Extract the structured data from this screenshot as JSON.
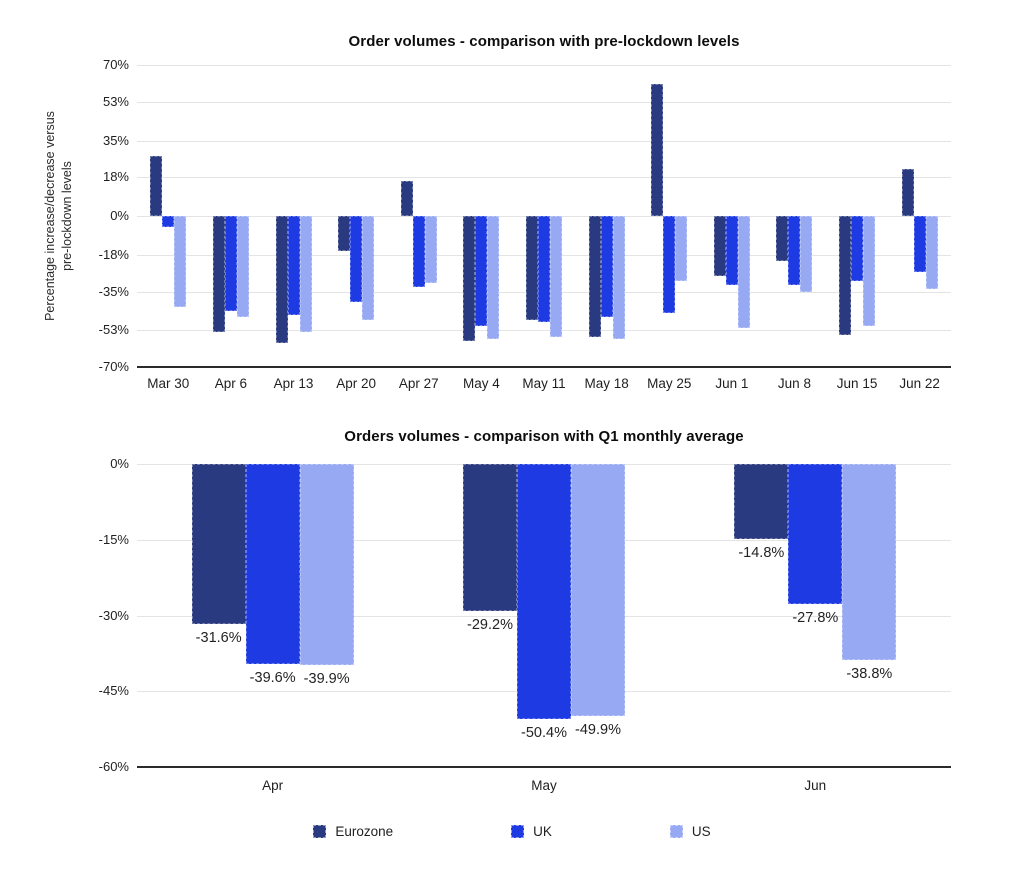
{
  "colors": {
    "eurozone": "#2a3a80",
    "uk": "#1e3ae3",
    "us": "#97a9f2",
    "gridline": "#e4e4e4",
    "axis": "#2b2b2b",
    "text": "#1f1f1f"
  },
  "legend": {
    "items": [
      {
        "label": "Eurozone",
        "color": "#2a3a80"
      },
      {
        "label": "UK",
        "color": "#1e3ae3"
      },
      {
        "label": "US",
        "color": "#97a9f2"
      }
    ]
  },
  "chart_data": [
    {
      "type": "bar",
      "title": "Order volumes - comparison with pre-lockdown levels",
      "ylabel": "Percentage increase/decrease versus pre-lockdown levels",
      "ylabel_lines": [
        "Percentage increase/decrease versus",
        "pre-lockdown levels"
      ],
      "categories": [
        "Mar 30",
        "Apr 6",
        "Apr 13",
        "Apr 20",
        "Apr 27",
        "May 4",
        "May 11",
        "May 18",
        "May 25",
        "Jun 1",
        "Jun 8",
        "Jun 15",
        "Jun 22"
      ],
      "series": [
        {
          "name": "Eurozone",
          "color": "#2a3a80",
          "values": [
            28,
            -54,
            -59,
            -16,
            16,
            -58,
            -48,
            -56,
            61,
            -28,
            -21,
            -55,
            22
          ]
        },
        {
          "name": "UK",
          "color": "#1e3ae3",
          "values": [
            -5,
            -44,
            -46,
            -40,
            -33,
            -51,
            -49,
            -47,
            -45,
            -32,
            -32,
            -30,
            -26
          ]
        },
        {
          "name": "US",
          "color": "#97a9f2",
          "values": [
            -42,
            -47,
            -54,
            -48,
            -31,
            -57,
            -56,
            -57,
            -30,
            -52,
            -35,
            -51,
            -34
          ]
        }
      ],
      "ylim": [
        -70,
        70
      ],
      "yticks": [
        70,
        53,
        35,
        18,
        0,
        -18,
        -35,
        -53,
        -70
      ],
      "ytick_unit": "%",
      "grid": true,
      "legend_position": "none"
    },
    {
      "type": "bar",
      "title": "Orders volumes - comparison with Q1 monthly average",
      "categories": [
        "Apr",
        "May",
        "Jun"
      ],
      "series": [
        {
          "name": "Eurozone",
          "color": "#2a3a80",
          "values": [
            -31.6,
            -29.2,
            -14.8
          ],
          "labels": [
            "-31.6%",
            "-29.2%",
            "-14.8%"
          ]
        },
        {
          "name": "UK",
          "color": "#1e3ae3",
          "values": [
            -39.6,
            -50.4,
            -27.8
          ],
          "labels": [
            "-39.6%",
            "-50.4%",
            "-27.8%"
          ]
        },
        {
          "name": "US",
          "color": "#97a9f2",
          "values": [
            -39.9,
            -49.9,
            -38.8
          ],
          "labels": [
            "-39.9%",
            "-49.9%",
            "-38.8%"
          ]
        }
      ],
      "ylim": [
        -60,
        0
      ],
      "yticks": [
        0,
        -15,
        -30,
        -45,
        -60
      ],
      "ytick_unit": "%",
      "grid": true,
      "legend_position": "bottom"
    }
  ]
}
